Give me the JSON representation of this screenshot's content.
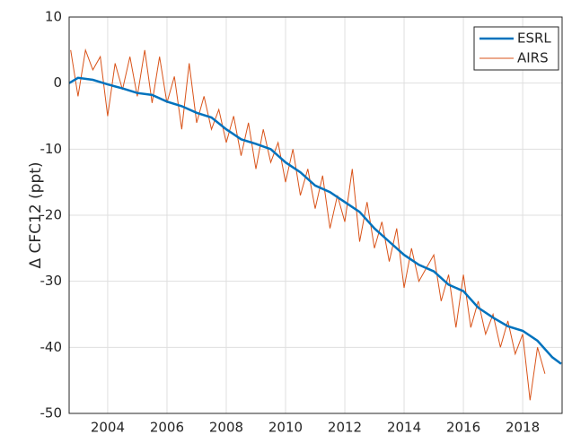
{
  "chart_data": {
    "type": "line",
    "ylabel": "Δ CFC12 (ppt)",
    "xlim": [
      2002.7,
      2019.33
    ],
    "xticks": [
      2004,
      2006,
      2008,
      2010,
      2012,
      2014,
      2016,
      2018
    ],
    "ylim": [
      -50,
      10
    ],
    "yticks": [
      -50,
      -40,
      -30,
      -20,
      -10,
      0,
      10
    ],
    "grid": true,
    "legend": "top-right",
    "series": [
      {
        "name": "ESRL",
        "color": "#0072bd",
        "x": [
          2002.7,
          2003.0,
          2003.5,
          2004.0,
          2004.5,
          2005.0,
          2005.5,
          2006.0,
          2006.5,
          2007.0,
          2007.5,
          2008.0,
          2008.5,
          2009.0,
          2009.5,
          2010.0,
          2010.5,
          2011.0,
          2011.5,
          2012.0,
          2012.5,
          2013.0,
          2013.5,
          2014.0,
          2014.5,
          2015.0,
          2015.5,
          2016.0,
          2016.5,
          2017.0,
          2017.5,
          2018.0,
          2018.5,
          2019.0,
          2019.3
        ],
        "values": [
          0,
          0.8,
          0.5,
          -0.2,
          -0.8,
          -1.5,
          -1.8,
          -2.8,
          -3.5,
          -4.5,
          -5.2,
          -7,
          -8.5,
          -9.2,
          -10,
          -12,
          -13.5,
          -15.5,
          -16.5,
          -18,
          -19.5,
          -22,
          -24,
          -26,
          -27.5,
          -28.5,
          -30.5,
          -31.5,
          -34,
          -35.5,
          -36.8,
          -37.5,
          -39,
          -41.5,
          -42.5
        ]
      },
      {
        "name": "AIRS",
        "color": "#d95319",
        "x": [
          2002.75,
          2003.0,
          2003.25,
          2003.5,
          2003.75,
          2004.0,
          2004.25,
          2004.5,
          2004.75,
          2005.0,
          2005.25,
          2005.5,
          2005.75,
          2006.0,
          2006.25,
          2006.5,
          2006.75,
          2007.0,
          2007.25,
          2007.5,
          2007.75,
          2008.0,
          2008.25,
          2008.5,
          2008.75,
          2009.0,
          2009.25,
          2009.5,
          2009.75,
          2010.0,
          2010.25,
          2010.5,
          2010.75,
          2011.0,
          2011.25,
          2011.5,
          2011.75,
          2012.0,
          2012.25,
          2012.5,
          2012.75,
          2013.0,
          2013.25,
          2013.5,
          2013.75,
          2014.0,
          2014.25,
          2014.5,
          2014.75,
          2015.0,
          2015.25,
          2015.5,
          2015.75,
          2016.0,
          2016.25,
          2016.5,
          2016.75,
          2017.0,
          2017.25,
          2017.5,
          2017.75,
          2018.0,
          2018.25,
          2018.5,
          2018.75
        ],
        "values": [
          5,
          -2,
          5,
          2,
          4,
          -5,
          3,
          -1,
          4,
          -2,
          5,
          -3,
          4,
          -3,
          1,
          -7,
          3,
          -6,
          -2,
          -7,
          -4,
          -9,
          -5,
          -11,
          -6,
          -13,
          -7,
          -12,
          -9,
          -15,
          -10,
          -17,
          -13,
          -19,
          -14,
          -22,
          -17,
          -21,
          -13,
          -24,
          -18,
          -25,
          -21,
          -27,
          -22,
          -31,
          -25,
          -30,
          -28,
          -26,
          -33,
          -29,
          -37,
          -29,
          -37,
          -33,
          -38,
          -35,
          -40,
          -36,
          -41,
          -38,
          -48,
          -40,
          -44
        ]
      }
    ]
  }
}
